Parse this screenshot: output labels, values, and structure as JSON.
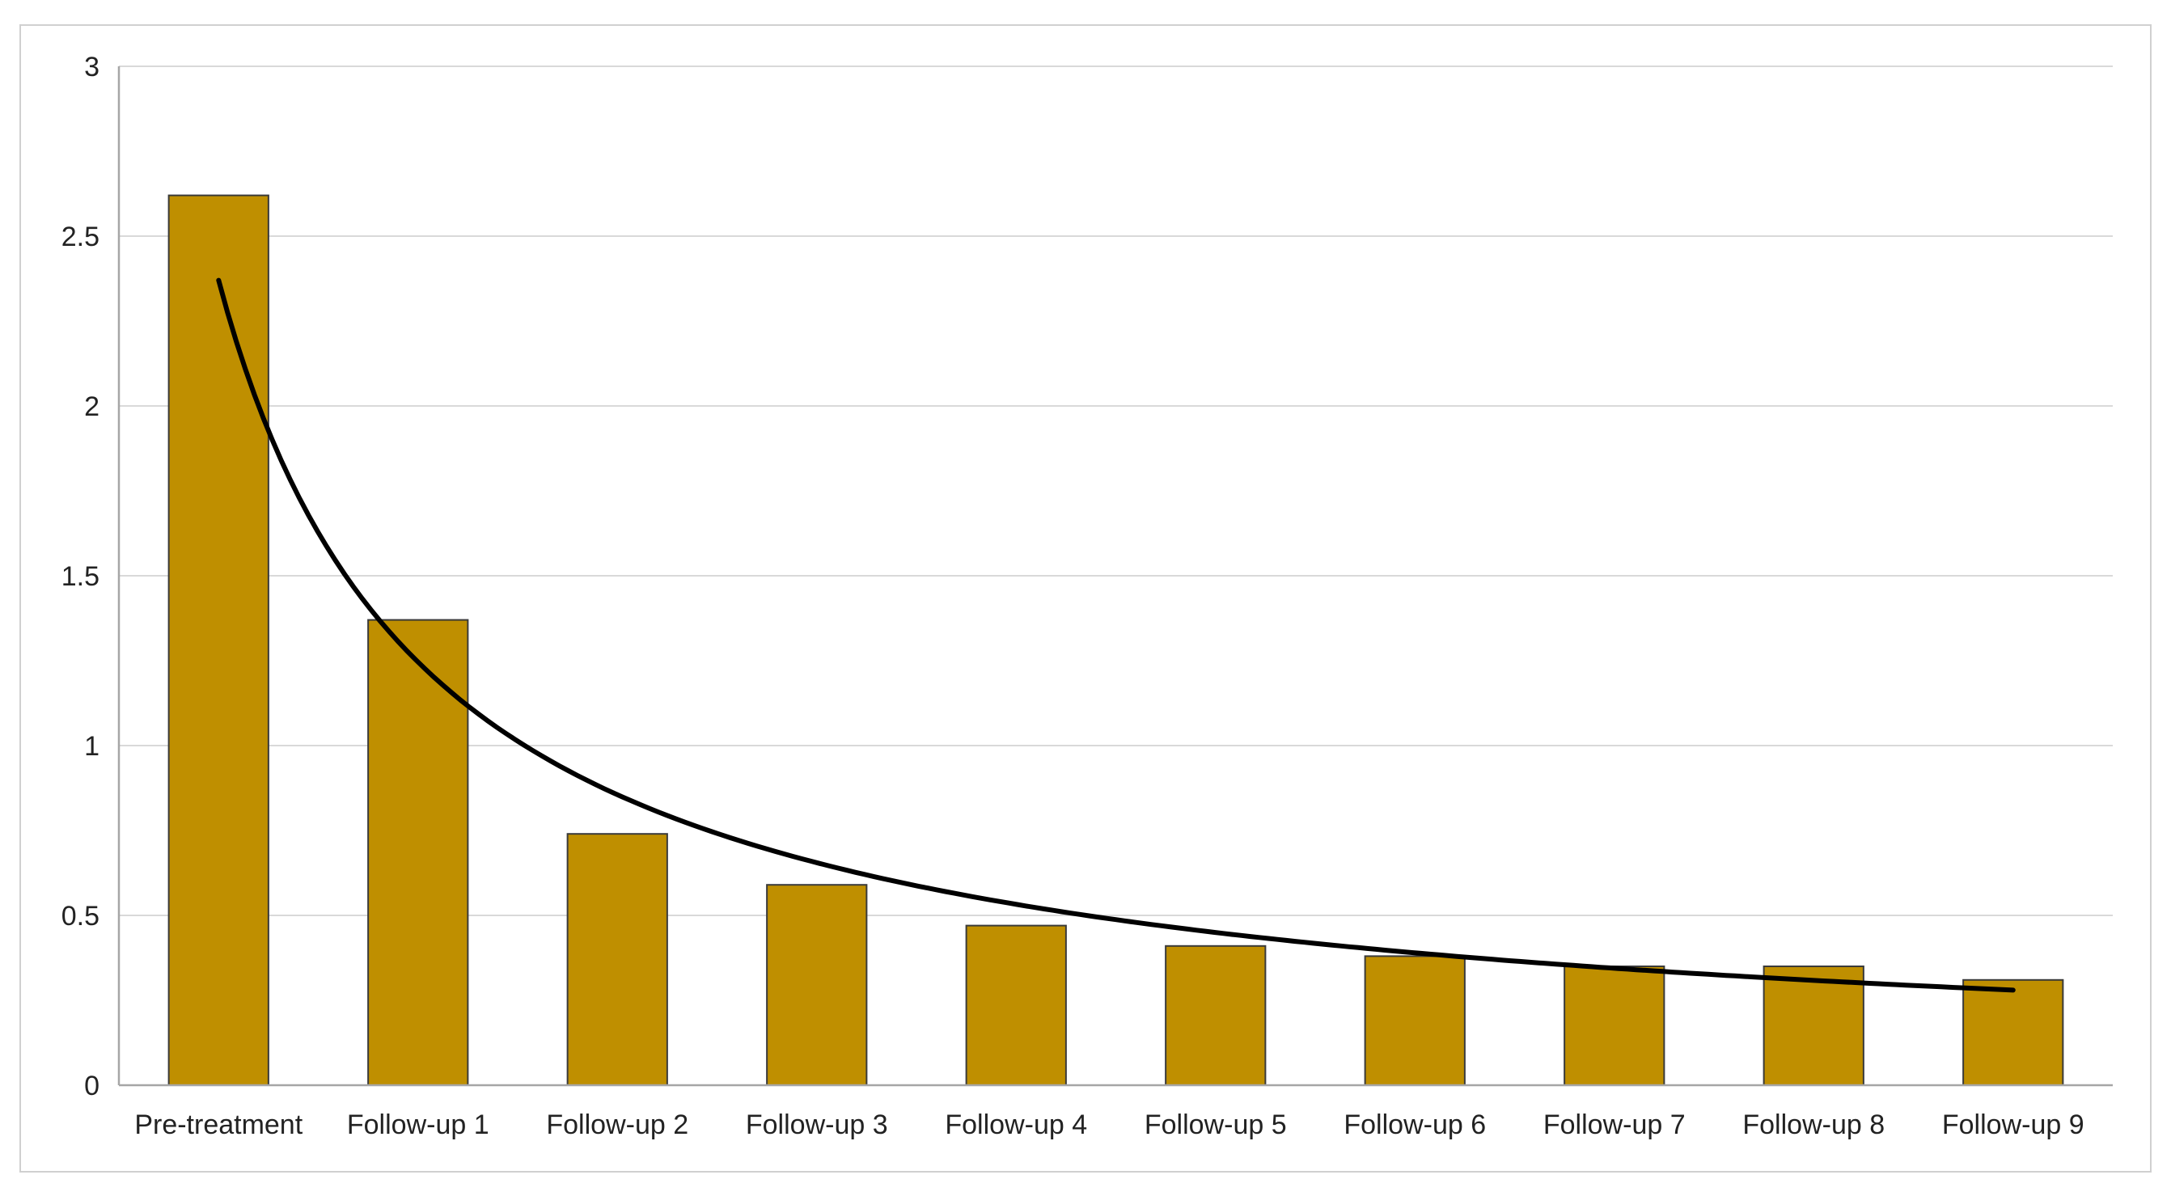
{
  "chart_data": {
    "type": "bar",
    "title": "",
    "xlabel": "",
    "ylabel": "",
    "categories": [
      "Pre-treatment",
      "Follow-up 1",
      "Follow-up 2",
      "Follow-up 3",
      "Follow-up 4",
      "Follow-up 5",
      "Follow-up 6",
      "Follow-up 7",
      "Follow-up 8",
      "Follow-up 9"
    ],
    "values": [
      2.62,
      1.37,
      0.74,
      0.59,
      0.47,
      0.41,
      0.38,
      0.35,
      0.35,
      0.31
    ],
    "ylim": [
      0,
      3
    ],
    "yticks": [
      0,
      0.5,
      1,
      1.5,
      2,
      2.5,
      3
    ],
    "ytick_labels": [
      "0",
      "0.5",
      "1",
      "1.5",
      "2",
      "2.5",
      "3"
    ],
    "trendline": {
      "type": "power",
      "values": [
        2.37,
        1.12,
        0.8,
        0.62,
        0.53,
        0.45,
        0.39,
        0.34,
        0.31,
        0.28
      ]
    },
    "grid": true,
    "legend": "none",
    "colors": {
      "bar_fill": "#BF8F00",
      "bar_edge": "#3a3a3a",
      "trendline": "#000000",
      "grid": "#d9d9d9",
      "axis": "#a6a6a6"
    }
  }
}
